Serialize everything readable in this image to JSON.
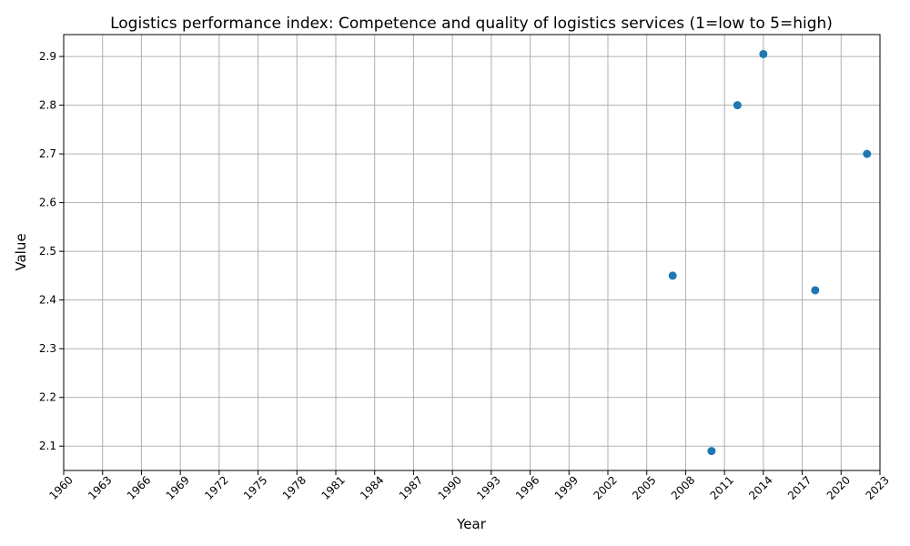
{
  "chart_data": {
    "type": "scatter",
    "title": "Logistics performance index: Competence and quality of logistics services (1=low to 5=high)",
    "xlabel": "Year",
    "ylabel": "Value",
    "xlim": [
      1960,
      2023
    ],
    "ylim": [
      2.05,
      2.945
    ],
    "x_ticks": [
      1960,
      1963,
      1966,
      1969,
      1972,
      1975,
      1978,
      1981,
      1984,
      1987,
      1990,
      1993,
      1996,
      1999,
      2002,
      2005,
      2008,
      2011,
      2014,
      2017,
      2020,
      2023
    ],
    "y_ticks": [
      2.1,
      2.2,
      2.3,
      2.4,
      2.5,
      2.6,
      2.7,
      2.8,
      2.9
    ],
    "grid": true,
    "marker_color": "#1f77b4",
    "points": [
      {
        "x": 2007,
        "y": 2.45
      },
      {
        "x": 2010,
        "y": 2.09
      },
      {
        "x": 2012,
        "y": 2.8
      },
      {
        "x": 2014,
        "y": 2.905
      },
      {
        "x": 2018,
        "y": 2.42
      },
      {
        "x": 2022,
        "y": 2.7
      }
    ]
  }
}
